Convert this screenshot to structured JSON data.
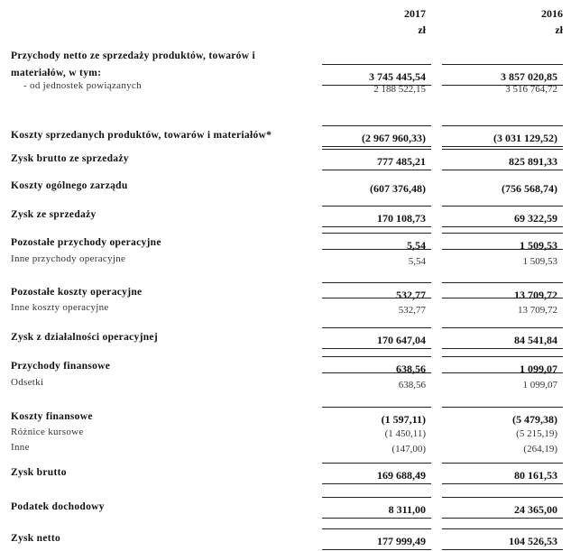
{
  "header": {
    "year_current": "2017",
    "year_previous": "2016",
    "currency_current": "zł",
    "currency_previous": "zł"
  },
  "rows": [
    {
      "label": "Przychody netto ze sprzedaży produktów, towarów i",
      "label2": "materiałów, w tym:",
      "v2017": "3 745 445,54",
      "v2016": "3 857 020,85",
      "bold": true
    },
    {
      "label": "- od jednostek powiązanych",
      "v2017": "2 188 522,15",
      "v2016": "3 516 764,72",
      "bold": false
    },
    {
      "label": "Koszty sprzedanych produktów, towarów i materiałów*",
      "v2017": "(2 967 960,33)",
      "v2016": "(3 031 129,52)",
      "bold": true
    },
    {
      "label": "Zysk brutto ze sprzedaży",
      "v2017": "777 485,21",
      "v2016": "825 891,33",
      "bold": true
    },
    {
      "label": "Koszty ogólnego zarządu",
      "v2017": "(607 376,48)",
      "v2016": "(756 568,74)",
      "bold": true
    },
    {
      "label": "Zysk ze sprzedaży",
      "v2017": "170 108,73",
      "v2016": "69 322,59",
      "bold": true
    },
    {
      "label": "Pozostałe przychody operacyjne",
      "v2017": "5,54",
      "v2016": "1 509,53",
      "bold": true
    },
    {
      "label": "Inne przychody operacyjne",
      "v2017": "5,54",
      "v2016": "1 509,53",
      "bold": false
    },
    {
      "label": "Pozostałe koszty operacyjne",
      "v2017": "532,77",
      "v2016": "13 709,72",
      "bold": true
    },
    {
      "label": "Inne koszty operacyjne",
      "v2017": "532,77",
      "v2016": "13 709,72",
      "bold": false
    },
    {
      "label": "Zysk z działalności operacyjnej",
      "v2017": "170 647,04",
      "v2016": "84 541,84",
      "bold": true
    },
    {
      "label": "Przychody finansowe",
      "v2017": "638,56",
      "v2016": "1 099,07",
      "bold": true
    },
    {
      "label": "Odsetki",
      "v2017": "638,56",
      "v2016": "1 099,07",
      "bold": false
    },
    {
      "label": "Koszty finansowe",
      "v2017": "(1 597,11)",
      "v2016": "(5 479,38)",
      "bold": true
    },
    {
      "label": "Różnice kursowe",
      "v2017": "(1 450,11)",
      "v2016": "(5 215,19)",
      "bold": false
    },
    {
      "label": "Inne",
      "v2017": "(147,00)",
      "v2016": "(264,19)",
      "bold": false
    },
    {
      "label": "Zysk brutto",
      "v2017": "169 688,49",
      "v2016": "80 161,53",
      "bold": true
    },
    {
      "label": "Podatek dochodowy",
      "v2017": "8 311,00",
      "v2016": "24 365,00",
      "bold": true
    },
    {
      "label": "Zysk netto",
      "v2017": "177 999,49",
      "v2016": "104 526,53",
      "bold": true
    }
  ]
}
